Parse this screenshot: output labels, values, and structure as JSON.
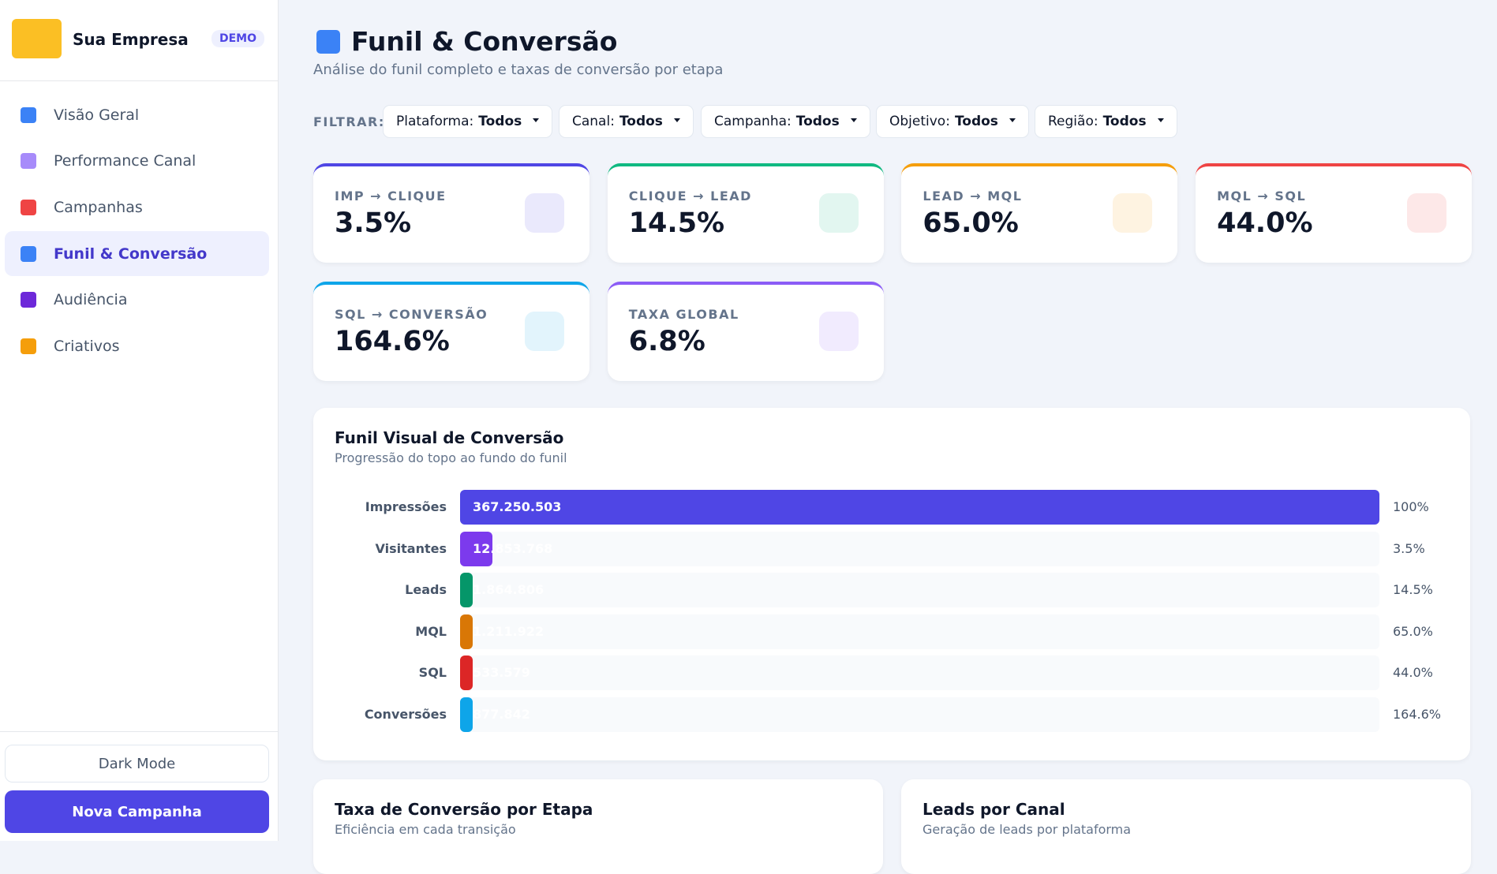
{
  "sidebar": {
    "brand": "Sua Empresa",
    "badge": "DEMO",
    "nav": [
      {
        "label": "Visão Geral",
        "color": "#3b82f6"
      },
      {
        "label": "Performance Canal",
        "color": "#a78bfa"
      },
      {
        "label": "Campanhas",
        "color": "#ef4444"
      },
      {
        "label": "Funil & Conversão",
        "color": "#3b82f6",
        "active": true
      },
      {
        "label": "Audiência",
        "color": "#6d28d9"
      },
      {
        "label": "Criativos",
        "color": "#f59e0b"
      }
    ],
    "dark_mode": "Dark Mode",
    "new_campaign": "Nova Campanha"
  },
  "header": {
    "title": "Funil & Conversão",
    "subtitle": "Análise do funil completo e taxas de conversão por etapa"
  },
  "filters": {
    "label": "FILTRAR:",
    "items": [
      {
        "name": "Plataforma:",
        "value": "Todos"
      },
      {
        "name": "Canal:",
        "value": "Todos"
      },
      {
        "name": "Campanha:",
        "value": "Todos"
      },
      {
        "name": "Objetivo:",
        "value": "Todos"
      },
      {
        "name": "Região:",
        "value": "Todos"
      }
    ]
  },
  "kpis": [
    {
      "label": "IMP → CLIQUE",
      "value": "3.5%",
      "color": "#4f46e5"
    },
    {
      "label": "CLIQUE → LEAD",
      "value": "14.5%",
      "color": "#10b981"
    },
    {
      "label": "LEAD → MQL",
      "value": "65.0%",
      "color": "#f59e0b"
    },
    {
      "label": "MQL → SQL",
      "value": "44.0%",
      "color": "#ef4444"
    },
    {
      "label": "SQL → CONVERSÃO",
      "value": "164.6%",
      "color": "#0ea5e9"
    },
    {
      "label": "TAXA GLOBAL",
      "value": "6.8%",
      "color": "#8b5cf6"
    }
  ],
  "funnel": {
    "title": "Funil Visual de Conversão",
    "subtitle": "Progressão do topo ao fundo do funil",
    "stages": [
      {
        "label": "Impressões",
        "value": 367250503,
        "value_label": "367.250.503",
        "pct": "100%",
        "color": "#4f46e5"
      },
      {
        "label": "Visitantes",
        "value": 12853768,
        "value_label": "12.853.768",
        "pct": "3.5%",
        "color": "#7c3aed"
      },
      {
        "label": "Leads",
        "value": 1864806,
        "value_label": "1.864.806",
        "pct": "14.5%",
        "color": "#059669"
      },
      {
        "label": "MQL",
        "value": 1211922,
        "value_label": "1.211.922",
        "pct": "65.0%",
        "color": "#d97706"
      },
      {
        "label": "SQL",
        "value": 533579,
        "value_label": "533.579",
        "pct": "44.0%",
        "color": "#dc2626"
      },
      {
        "label": "Conversões",
        "value": 877842,
        "value_label": "877.842",
        "pct": "164.6%",
        "color": "#0ea5e9"
      }
    ]
  },
  "cards": [
    {
      "title": "Taxa de Conversão por Etapa",
      "subtitle": "Eficiência em cada transição"
    },
    {
      "title": "Leads por Canal",
      "subtitle": "Geração de leads por plataforma"
    }
  ]
}
